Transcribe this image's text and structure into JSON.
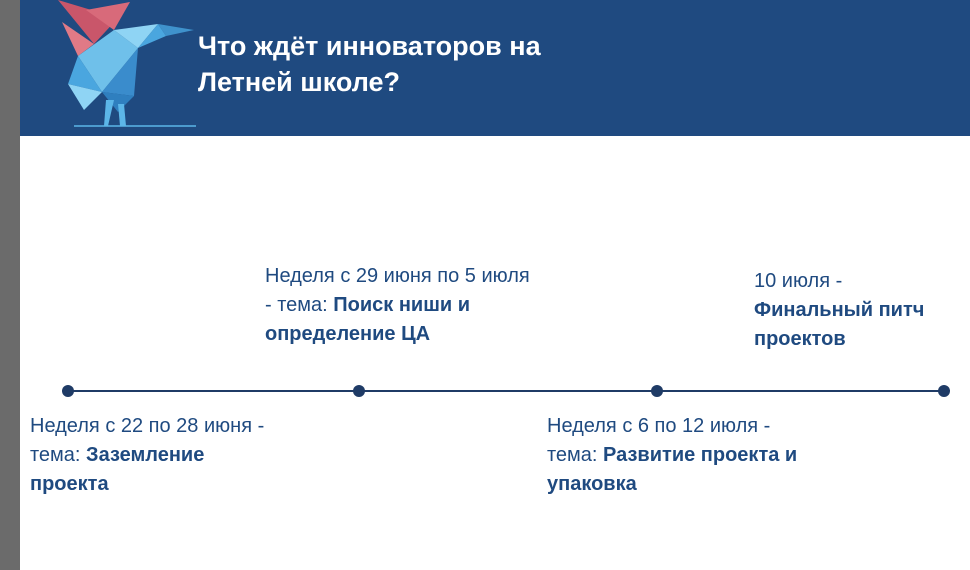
{
  "header": {
    "title_line1": "Что ждёт инноваторов на",
    "title_line2": "Летней школе?",
    "logo_icon": "origami-hummingbird-icon",
    "background_color": "#1f4a80"
  },
  "timeline": {
    "line_color": "#1f3b66",
    "events": [
      {
        "text_regular": "Неделя с 22 по 28 июня - тема: ",
        "text_bold": "Заземление проекта"
      },
      {
        "text_regular": "Неделя с 29 июня по 5 июля - тема: ",
        "text_bold": "Поиск ниши и определение ЦА"
      },
      {
        "text_regular": "Неделя с 6 по 12 июля - тема: ",
        "text_bold": "Развитие проекта и упаковка"
      },
      {
        "text_regular": "10 июля - ",
        "text_bold": "Финальный питч проектов"
      }
    ]
  }
}
